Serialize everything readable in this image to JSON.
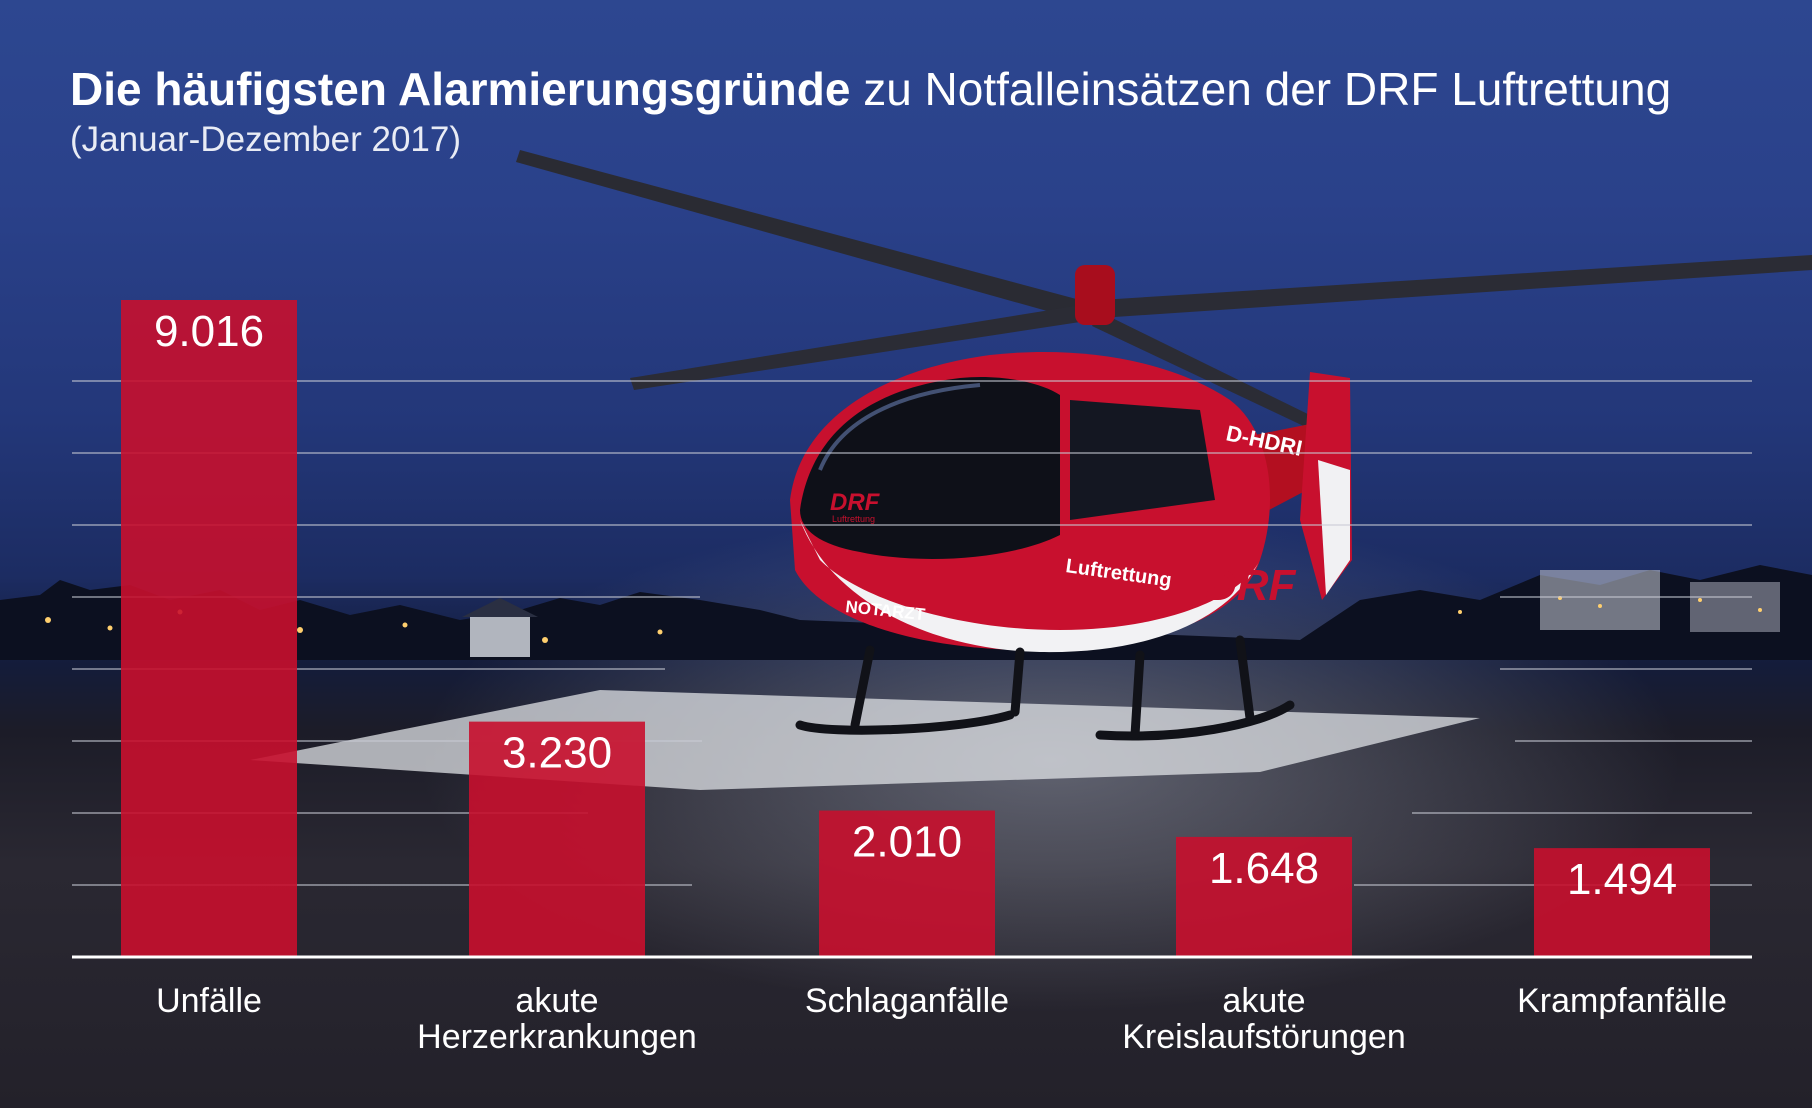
{
  "title": {
    "bold": "Die häufigsten Alarmierungsgründe",
    "rest": "zu Notfalleinsätzen der DRF Luftrettung",
    "subtitle": "(Januar-Dezember 2017)"
  },
  "helicopter": {
    "logo": "DRF",
    "logo_sub": "Luftrettung",
    "side_text": "Luftrettung",
    "notarzt": "NOTARZT",
    "registration": "D-HDRI"
  },
  "colors": {
    "bar": "#c8102e",
    "text": "#ffffff",
    "gridline": "#c9ccd6"
  },
  "chart_data": {
    "type": "bar",
    "categories": [
      "Unfälle",
      "akute Herzerkrankungen",
      "Schlaganfälle",
      "akute Kreislaufstörungen",
      "Krampfanfälle"
    ],
    "category_lines": [
      [
        "Unfälle"
      ],
      [
        "akute",
        "Herzerkrankungen"
      ],
      [
        "Schlaganfälle"
      ],
      [
        "akute",
        "Kreislaufstörungen"
      ],
      [
        "Krampfanfälle"
      ]
    ],
    "values": [
      9016,
      3230,
      2010,
      1648,
      1494
    ],
    "value_labels": [
      "9.016",
      "3.230",
      "2.010",
      "1.648",
      "1.494"
    ],
    "ylim": [
      0,
      9500
    ],
    "grid": true,
    "legend": "none"
  }
}
